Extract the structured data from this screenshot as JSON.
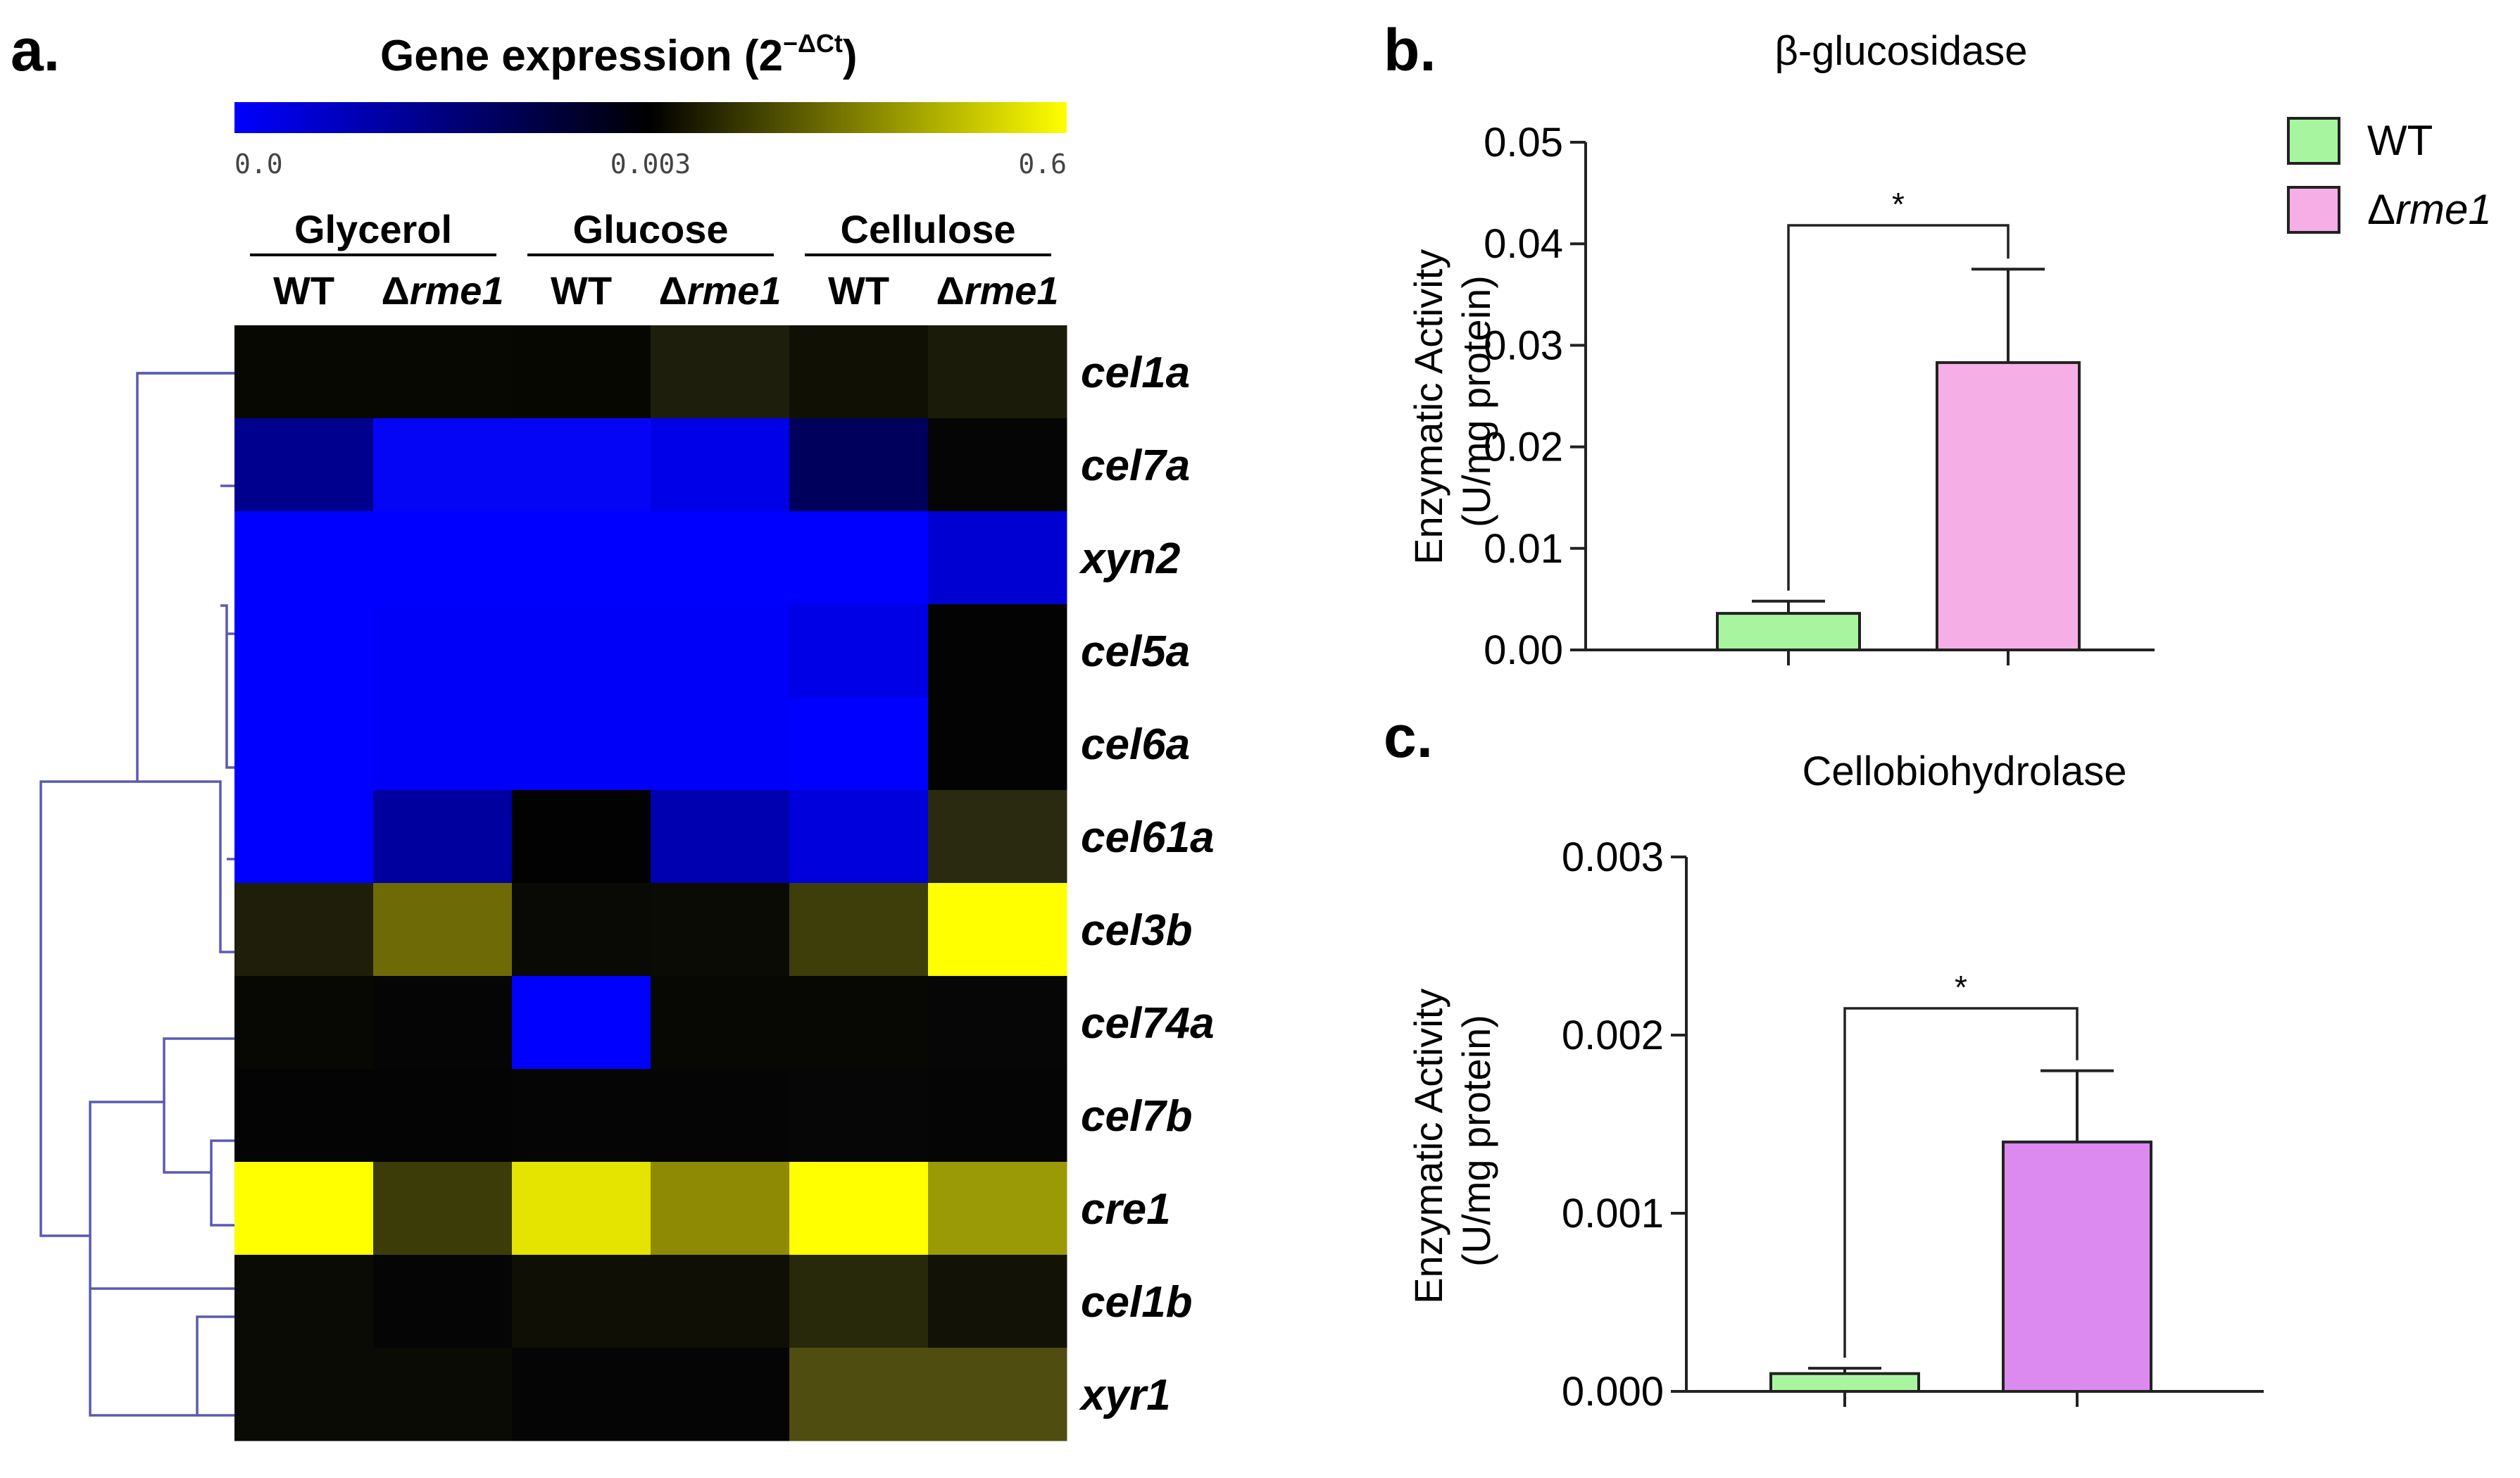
{
  "chart_data": [
    {
      "type": "heatmap",
      "panel_label": "a.",
      "title_main": "Gene expression (2",
      "title_sup": "−ΔCt",
      "title_close": ")",
      "colorbar": {
        "tick_labels": [
          "0.0",
          "0.003",
          "0.6"
        ],
        "colors": [
          "#0000ff",
          "#000000",
          "#ffff00"
        ]
      },
      "groups": [
        "Glycerol",
        "Glucose",
        "Cellulose"
      ],
      "columns": [
        {
          "prefix": "",
          "italic": "WT"
        },
        {
          "prefix": "Δ",
          "italic": "rme1"
        },
        {
          "prefix": "",
          "italic": "WT"
        },
        {
          "prefix": "Δ",
          "italic": "rme1"
        },
        {
          "prefix": "",
          "italic": "WT"
        },
        {
          "prefix": "Δ",
          "italic": "rme1"
        }
      ],
      "rows": [
        "cel1a",
        "cel7a",
        "xyn2",
        "cel5a",
        "cel6a",
        "cel61a",
        "cel3b",
        "cel74a",
        "cel7b",
        "cre1",
        "cel1b",
        "xyr1"
      ],
      "colors": [
        [
          "#080802",
          "#080802",
          "#070702",
          "#1e1e0c",
          "#101005",
          "#1b1b0a"
        ],
        [
          "#00008e",
          "#0505f5",
          "#0505f5",
          "#0000e8",
          "#00005c",
          "#050505"
        ],
        [
          "#0000ff",
          "#0000ff",
          "#0000ff",
          "#0000ff",
          "#0000ff",
          "#0000d2"
        ],
        [
          "#0000ff",
          "#0000fa",
          "#0000fa",
          "#0000fa",
          "#0000e6",
          "#030303"
        ],
        [
          "#0000ff",
          "#0000fa",
          "#0000fa",
          "#0000fa",
          "#0000ff",
          "#030303"
        ],
        [
          "#0000ff",
          "#00009e",
          "#020202",
          "#0000b0",
          "#0000dc",
          "#2a2a10"
        ],
        [
          "#1e1e0a",
          "#6e6a06",
          "#090905",
          "#0b0b06",
          "#3e3e0a",
          "#ffff00"
        ],
        [
          "#070703",
          "#050505",
          "#0000ff",
          "#070703",
          "#070703",
          "#060606"
        ],
        [
          "#040404",
          "#040404",
          "#050505",
          "#050505",
          "#060606",
          "#050505"
        ],
        [
          "#ffff00",
          "#3c3c08",
          "#e4e400",
          "#8e8a04",
          "#ffff00",
          "#9a9a06"
        ],
        [
          "#0b0b05",
          "#050505",
          "#0f0f05",
          "#0f0f05",
          "#28280a",
          "#121207"
        ],
        [
          "#0b0b05",
          "#0b0b05",
          "#050505",
          "#050505",
          "#4f4e10",
          "#4f4e10"
        ]
      ]
    },
    {
      "type": "bar",
      "panel_label": "b.",
      "title": "β-glucosidase",
      "ylabel_line1": "Enzymatic Activity",
      "ylabel_line2": "(U/mg protein)",
      "ylim": [
        0,
        0.05
      ],
      "yticks": [
        0.0,
        0.01,
        0.02,
        0.03,
        0.04,
        0.05
      ],
      "ytick_labels": [
        "0.00",
        "0.01",
        "0.02",
        "0.03",
        "0.04",
        "0.05"
      ],
      "series": [
        {
          "name": "WT",
          "value": 0.0036,
          "error": 0.0012,
          "color": "#a8f5a0"
        },
        {
          "name": "rme1",
          "value": 0.0283,
          "error": 0.0092,
          "color": "#f6aee6"
        }
      ],
      "significance": "*"
    },
    {
      "type": "bar",
      "panel_label": "c.",
      "title": "Cellobiohydrolase",
      "ylabel_line1": "Enzymatic Activity",
      "ylabel_line2": "(U/mg protein)",
      "ylim": [
        0,
        0.003
      ],
      "yticks": [
        0.0,
        0.001,
        0.002,
        0.003
      ],
      "ytick_labels": [
        "0.000",
        "0.001",
        "0.002",
        "0.003"
      ],
      "series": [
        {
          "name": "WT",
          "value": 0.0001,
          "error": 3e-05,
          "color": "#a8f5a0"
        },
        {
          "name": "rme1",
          "value": 0.0014,
          "error": 0.0004,
          "color": "#dc8af0"
        }
      ],
      "significance": "*"
    }
  ],
  "legend": [
    {
      "prefix": "",
      "label": "WT",
      "italic": false,
      "color": "#a8f5a0"
    },
    {
      "prefix": "Δ",
      "label": "rme1",
      "italic": true,
      "color": "#f6aee6"
    }
  ]
}
